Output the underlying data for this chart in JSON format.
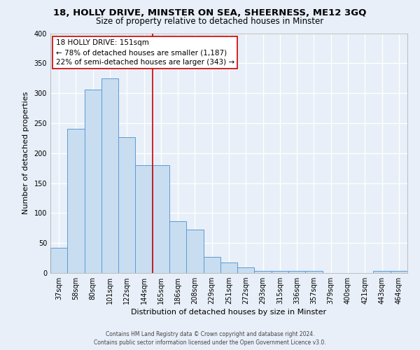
{
  "title1": "18, HOLLY DRIVE, MINSTER ON SEA, SHEERNESS, ME12 3GQ",
  "title2": "Size of property relative to detached houses in Minster",
  "xlabel": "Distribution of detached houses by size in Minster",
  "ylabel": "Number of detached properties",
  "categories": [
    "37sqm",
    "58sqm",
    "80sqm",
    "101sqm",
    "122sqm",
    "144sqm",
    "165sqm",
    "186sqm",
    "208sqm",
    "229sqm",
    "251sqm",
    "272sqm",
    "293sqm",
    "315sqm",
    "336sqm",
    "357sqm",
    "379sqm",
    "400sqm",
    "421sqm",
    "443sqm",
    "464sqm"
  ],
  "values": [
    42,
    241,
    306,
    325,
    227,
    180,
    180,
    87,
    72,
    27,
    17,
    9,
    4,
    4,
    4,
    3,
    0,
    0,
    0,
    4,
    4
  ],
  "bar_color": "#c9ddf0",
  "bar_edge_color": "#5b9bd5",
  "vline_color": "#cc0000",
  "vline_x": 5.5,
  "annotation_title": "18 HOLLY DRIVE: 151sqm",
  "annotation_line1": "← 78% of detached houses are smaller (1,187)",
  "annotation_line2": "22% of semi-detached houses are larger (343) →",
  "annotation_box_color": "#ffffff",
  "annotation_box_edge": "#cc0000",
  "ylim": [
    0,
    400
  ],
  "yticks": [
    0,
    50,
    100,
    150,
    200,
    250,
    300,
    350,
    400
  ],
  "footer1": "Contains HM Land Registry data © Crown copyright and database right 2024.",
  "footer2": "Contains public sector information licensed under the Open Government Licence v3.0.",
  "bg_color": "#e8eff8",
  "grid_color": "#ffffff",
  "title1_fontsize": 9.5,
  "title2_fontsize": 8.5,
  "xlabel_fontsize": 8,
  "ylabel_fontsize": 8,
  "tick_fontsize": 7,
  "annot_fontsize": 7.5,
  "footer_fontsize": 5.5
}
